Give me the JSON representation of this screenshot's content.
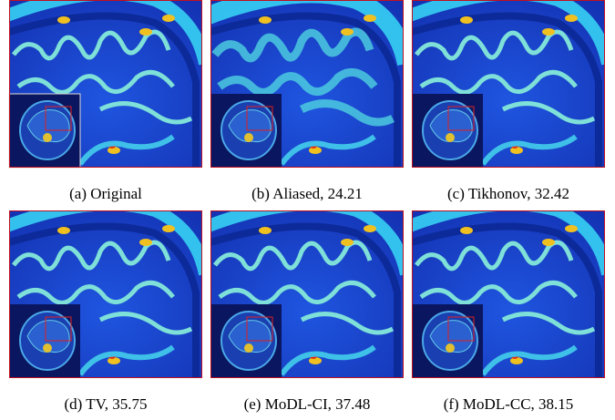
{
  "panels": [
    {
      "caption": "(a) Original"
    },
    {
      "caption": "(b) Aliased, 24.21"
    },
    {
      "caption": "(c) Tikhonov, 32.42"
    },
    {
      "caption": "(d) TV, 35.75"
    },
    {
      "caption": "(e) MoDL-CI, 37.48"
    },
    {
      "caption": "(f) MoDL-CC, 38.15"
    }
  ]
}
